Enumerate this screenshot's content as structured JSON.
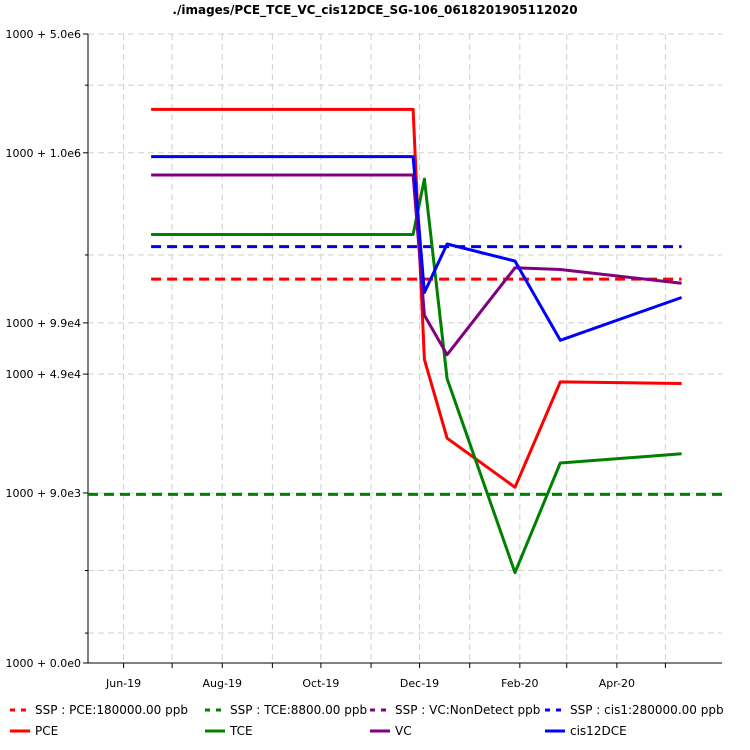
{
  "chart_data": {
    "type": "line",
    "title": "./images/PCE_TCE_VC_cis12DCE_SG-106_0618201905112020",
    "xlabel": "",
    "ylabel": "",
    "y_scale": "log-offset (1000 + value)",
    "ylim": [
      0,
      5000000
    ],
    "y_ticks": [
      {
        "value": 0,
        "label": "1000 + 0.0e0"
      },
      {
        "value": 9000,
        "label": "1000 + 9.0e3"
      },
      {
        "value": 49000,
        "label": "1000 + 4.9e4"
      },
      {
        "value": 99000,
        "label": "1000 + 9.9e4"
      },
      {
        "value": 1000000,
        "label": "1000 + 1.0e6"
      },
      {
        "value": 5000000,
        "label": "1000 + 5.0e6"
      }
    ],
    "y_minor_ticks": [
      500,
      2500,
      250000,
      2500000
    ],
    "xlim": [
      "2019-05-10",
      "2020-06-05"
    ],
    "x_ticks": [
      {
        "date": "2019-06-01",
        "label": "Jun-19"
      },
      {
        "date": "2019-08-01",
        "label": "Aug-19"
      },
      {
        "date": "2019-10-01",
        "label": "Oct-19"
      },
      {
        "date": "2019-12-01",
        "label": "Dec-19"
      },
      {
        "date": "2020-02-01",
        "label": "Feb-20"
      },
      {
        "date": "2020-04-01",
        "label": "Apr-20"
      }
    ],
    "x_minor_ticks": [
      "2019-07-01",
      "2019-09-01",
      "2019-11-01",
      "2020-01-01",
      "2020-03-01",
      "2020-05-01"
    ],
    "grid": true,
    "legend_position": "bottom",
    "series": [
      {
        "name": "PCE",
        "color": "#ff0000",
        "dash": "solid",
        "points": [
          [
            "2019-06-18",
            1800000
          ],
          [
            "2019-11-27",
            1800000
          ],
          [
            "2019-12-04",
            60000
          ],
          [
            "2019-12-18",
            20000
          ],
          [
            "2020-01-29",
            9800
          ],
          [
            "2020-02-26",
            44000
          ],
          [
            "2020-05-11",
            43000
          ]
        ]
      },
      {
        "name": "TCE",
        "color": "#008000",
        "dash": "solid",
        "points": [
          [
            "2019-06-18",
            330000
          ],
          [
            "2019-11-27",
            330000
          ],
          [
            "2019-12-04",
            700000
          ],
          [
            "2019-12-18",
            46000
          ],
          [
            "2020-01-29",
            2400
          ],
          [
            "2020-02-26",
            14000
          ],
          [
            "2020-05-11",
            16000
          ]
        ]
      },
      {
        "name": "VC",
        "color": "#800080",
        "dash": "solid",
        "points": [
          [
            "2019-06-18",
            740000
          ],
          [
            "2019-11-27",
            740000
          ],
          [
            "2019-12-04",
            110000
          ],
          [
            "2019-12-18",
            64000
          ],
          [
            "2020-01-29",
            210000
          ],
          [
            "2020-02-26",
            205000
          ],
          [
            "2020-05-11",
            170000
          ]
        ]
      },
      {
        "name": "cis12DCE",
        "color": "#0000ff",
        "dash": "solid",
        "points": [
          [
            "2019-06-18",
            950000
          ],
          [
            "2019-11-27",
            950000
          ],
          [
            "2019-12-04",
            150000
          ],
          [
            "2019-12-18",
            290000
          ],
          [
            "2020-01-29",
            230000
          ],
          [
            "2020-02-26",
            78000
          ],
          [
            "2020-05-11",
            140000
          ]
        ]
      },
      {
        "name": "SSP : PCE:180000.00 ppb",
        "color": "#ff0000",
        "dash": "dashed",
        "points": [
          [
            "2019-06-18",
            180000
          ],
          [
            "2020-05-11",
            180000
          ]
        ]
      },
      {
        "name": "SSP : TCE:8800.00 ppb",
        "color": "#008000",
        "dash": "dashed",
        "points": [
          [
            "2019-05-10",
            8800
          ],
          [
            "2020-06-05",
            8800
          ]
        ]
      },
      {
        "name": "SSP : VC:NonDetect ppb",
        "color": "#800080",
        "dash": "dashed",
        "points": []
      },
      {
        "name": "SSP : cis1:280000.00 ppb",
        "color": "#0000ff",
        "dash": "dashed",
        "points": [
          [
            "2019-06-18",
            280000
          ],
          [
            "2020-05-11",
            280000
          ]
        ]
      }
    ],
    "legend": [
      {
        "label": "SSP : PCE:180000.00 ppb",
        "color": "#ff0000",
        "dash": "dashed"
      },
      {
        "label": "SSP : TCE:8800.00 ppb",
        "color": "#008000",
        "dash": "dashed"
      },
      {
        "label": "SSP : VC:NonDetect ppb",
        "color": "#800080",
        "dash": "dashed"
      },
      {
        "label": "SSP : cis1:280000.00 ppb",
        "color": "#0000ff",
        "dash": "dashed"
      },
      {
        "label": "PCE",
        "color": "#ff0000",
        "dash": "solid"
      },
      {
        "label": "TCE",
        "color": "#008000",
        "dash": "solid"
      },
      {
        "label": "VC",
        "color": "#800080",
        "dash": "solid"
      },
      {
        "label": "cis12DCE",
        "color": "#0000ff",
        "dash": "solid"
      }
    ]
  }
}
